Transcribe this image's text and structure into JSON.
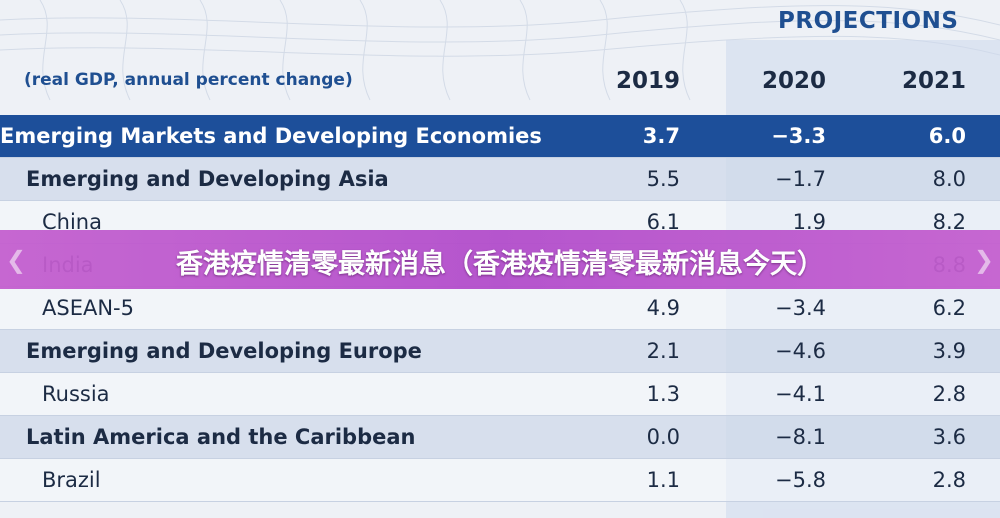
{
  "colors": {
    "header_row_bg": "#1d4f9a",
    "group_row_bg": "#ced8e9",
    "title_text": "#1f4f91",
    "banner_bg": "#b24ccb"
  },
  "banner": {
    "text": "香港疫情清零最新消息（香港疫情清零最新消息今天）",
    "prev_icon": "chevron-left-icon",
    "next_icon": "chevron-right-icon"
  },
  "chart_data": {
    "type": "table",
    "projections_label": "PROJECTIONS",
    "subtitle": "(real GDP, annual percent change)",
    "columns": [
      "2019",
      "2020",
      "2021"
    ],
    "rows": [
      {
        "label": "Emerging Markets and Developing Economies",
        "level": "head",
        "values": [
          "3.7",
          "−3.3",
          "6.0"
        ]
      },
      {
        "label": "Emerging and Developing Asia",
        "level": "group",
        "values": [
          "5.5",
          "−1.7",
          "8.0"
        ]
      },
      {
        "label": "China",
        "level": "sub",
        "values": [
          "6.1",
          "1.9",
          "8.2"
        ]
      },
      {
        "label": "India",
        "level": "sub",
        "values": [
          "",
          "",
          "8.8"
        ]
      },
      {
        "label": "ASEAN-5",
        "level": "sub",
        "values": [
          "4.9",
          "−3.4",
          "6.2"
        ]
      },
      {
        "label": "Emerging and Developing Europe",
        "level": "group",
        "values": [
          "2.1",
          "−4.6",
          "3.9"
        ]
      },
      {
        "label": "Russia",
        "level": "sub",
        "values": [
          "1.3",
          "−4.1",
          "2.8"
        ]
      },
      {
        "label": "Latin America and the Caribbean",
        "level": "group",
        "values": [
          "0.0",
          "−8.1",
          "3.6"
        ]
      },
      {
        "label": "Brazil",
        "level": "sub",
        "values": [
          "1.1",
          "−5.8",
          "2.8"
        ]
      }
    ]
  }
}
